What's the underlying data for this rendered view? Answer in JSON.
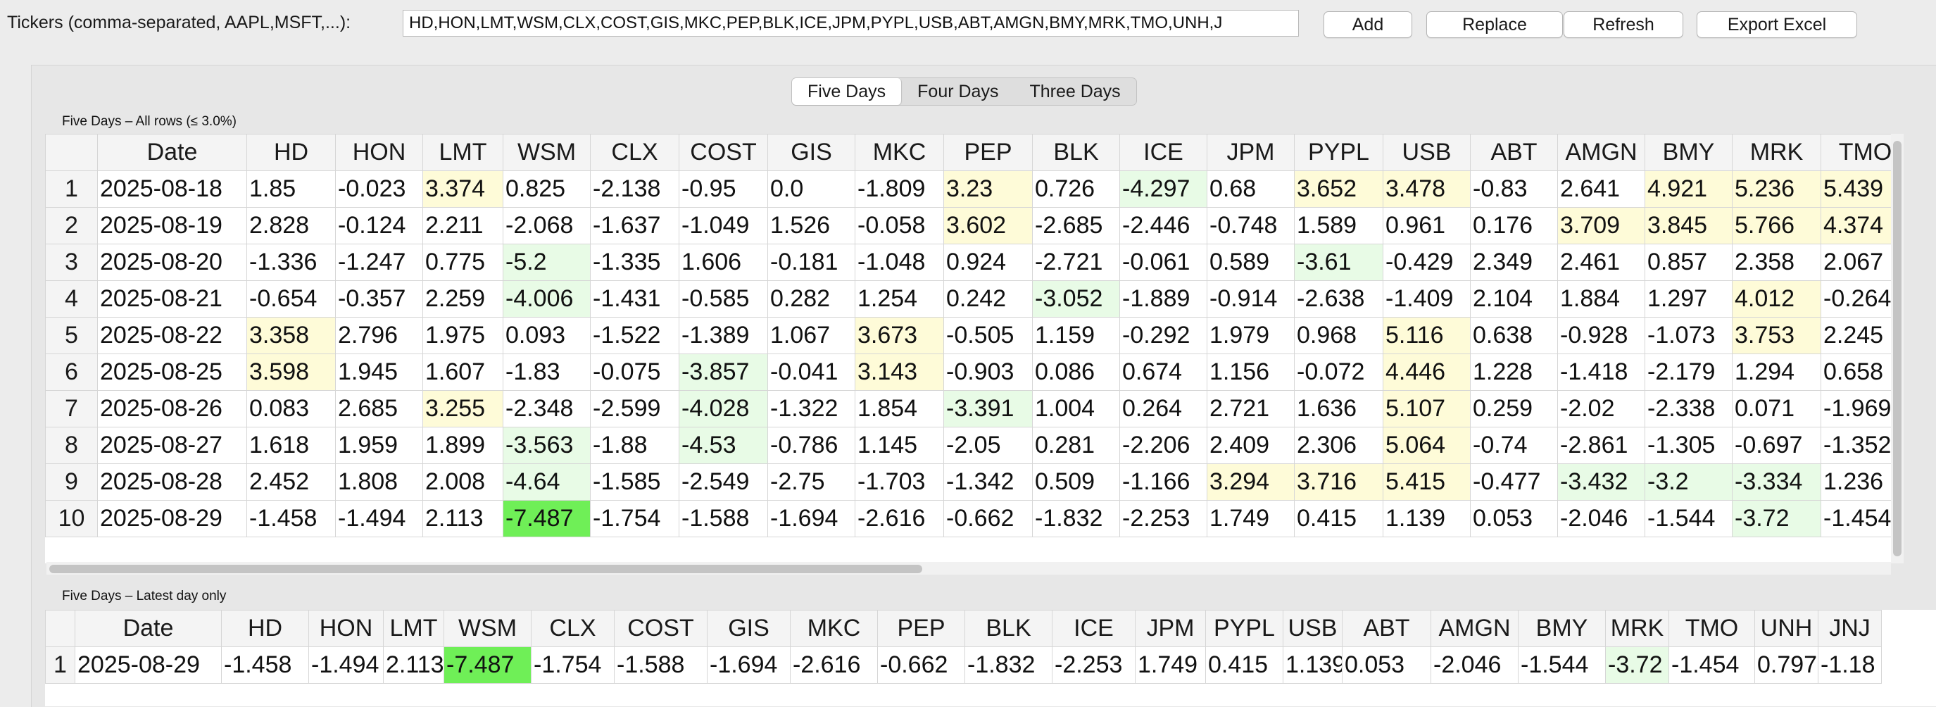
{
  "toolbar": {
    "tickers_label": "Tickers (comma-separated, AAPL,MSFT,...):",
    "tickers_value": "HD,HON,LMT,WSM,CLX,COST,GIS,MKC,PEP,BLK,ICE,JPM,PYPL,USB,ABT,AMGN,BMY,MRK,TMO,UNH,J",
    "add_label": "Add",
    "replace_label": "Replace",
    "refresh_label": "Refresh",
    "export_label": "Export Excel"
  },
  "tabs": [
    "Five Days",
    "Four Days",
    "Three Days"
  ],
  "active_tab": 0,
  "highlight_colors": {
    "yellow": "#fefbd8",
    "light_green": "#e8fbe6",
    "strong_green": "#6fef57"
  },
  "all_rows": {
    "caption": "Five Days – All rows (≤ 3.0%)",
    "columns": [
      "Date",
      "HD",
      "HON",
      "LMT",
      "WSM",
      "CLX",
      "COST",
      "GIS",
      "MKC",
      "PEP",
      "BLK",
      "ICE",
      "JPM",
      "PYPL",
      "USB",
      "ABT",
      "AMGN",
      "BMY",
      "MRK",
      "TMO"
    ],
    "rows": [
      {
        "idx": "1",
        "cells": [
          "2025-08-18",
          "1.85",
          "-0.023",
          "3.374",
          "0.825",
          "-2.138",
          "-0.95",
          "0.0",
          "-1.809",
          "3.23",
          "0.726",
          "-4.297",
          "0.68",
          "3.652",
          "3.478",
          "-0.83",
          "2.641",
          "4.921",
          "5.236",
          "5.439"
        ]
      },
      {
        "idx": "2",
        "cells": [
          "2025-08-19",
          "2.828",
          "-0.124",
          "2.211",
          "-2.068",
          "-1.637",
          "-1.049",
          "1.526",
          "-0.058",
          "3.602",
          "-2.685",
          "-2.446",
          "-0.748",
          "1.589",
          "0.961",
          "0.176",
          "3.709",
          "3.845",
          "5.766",
          "4.374"
        ]
      },
      {
        "idx": "3",
        "cells": [
          "2025-08-20",
          "-1.336",
          "-1.247",
          "0.775",
          "-5.2",
          "-1.335",
          "1.606",
          "-0.181",
          "-1.048",
          "0.924",
          "-2.721",
          "-0.061",
          "0.589",
          "-3.61",
          "-0.429",
          "2.349",
          "2.461",
          "0.857",
          "2.358",
          "2.067"
        ]
      },
      {
        "idx": "4",
        "cells": [
          "2025-08-21",
          "-0.654",
          "-0.357",
          "2.259",
          "-4.006",
          "-1.431",
          "-0.585",
          "0.282",
          "1.254",
          "0.242",
          "-3.052",
          "-1.889",
          "-0.914",
          "-2.638",
          "-1.409",
          "2.104",
          "1.884",
          "1.297",
          "4.012",
          "-0.264"
        ]
      },
      {
        "idx": "5",
        "cells": [
          "2025-08-22",
          "3.358",
          "2.796",
          "1.975",
          "0.093",
          "-1.522",
          "-1.389",
          "1.067",
          "3.673",
          "-0.505",
          "1.159",
          "-0.292",
          "1.979",
          "0.968",
          "5.116",
          "0.638",
          "-0.928",
          "-1.073",
          "3.753",
          "2.245"
        ]
      },
      {
        "idx": "6",
        "cells": [
          "2025-08-25",
          "3.598",
          "1.945",
          "1.607",
          "-1.83",
          "-0.075",
          "-3.857",
          "-0.041",
          "3.143",
          "-0.903",
          "0.086",
          "0.674",
          "1.156",
          "-0.072",
          "4.446",
          "1.228",
          "-1.418",
          "-2.179",
          "1.294",
          "0.658"
        ]
      },
      {
        "idx": "7",
        "cells": [
          "2025-08-26",
          "0.083",
          "2.685",
          "3.255",
          "-2.348",
          "-2.599",
          "-4.028",
          "-1.322",
          "1.854",
          "-3.391",
          "1.004",
          "0.264",
          "2.721",
          "1.636",
          "5.107",
          "0.259",
          "-2.02",
          "-2.338",
          "0.071",
          "-1.969"
        ]
      },
      {
        "idx": "8",
        "cells": [
          "2025-08-27",
          "1.618",
          "1.959",
          "1.899",
          "-3.563",
          "-1.88",
          "-4.53",
          "-0.786",
          "1.145",
          "-2.05",
          "0.281",
          "-2.206",
          "2.409",
          "2.306",
          "5.064",
          "-0.74",
          "-2.861",
          "-1.305",
          "-0.697",
          "-1.352"
        ]
      },
      {
        "idx": "9",
        "cells": [
          "2025-08-28",
          "2.452",
          "1.808",
          "2.008",
          "-4.64",
          "-1.585",
          "-2.549",
          "-2.75",
          "-1.703",
          "-1.342",
          "0.509",
          "-1.166",
          "3.294",
          "3.716",
          "5.415",
          "-0.477",
          "-3.432",
          "-3.2",
          "-3.334",
          "1.236"
        ]
      },
      {
        "idx": "10",
        "cells": [
          "2025-08-29",
          "-1.458",
          "-1.494",
          "2.113",
          "-7.487",
          "-1.754",
          "-1.588",
          "-1.694",
          "-2.616",
          "-0.662",
          "-1.832",
          "-2.253",
          "1.749",
          "0.415",
          "1.139",
          "0.053",
          "-2.046",
          "-1.544",
          "-3.72",
          "-1.454"
        ]
      }
    ]
  },
  "latest_day": {
    "caption": "Five Days – Latest day only",
    "columns": [
      "Date",
      "HD",
      "HON",
      "LMT",
      "WSM",
      "CLX",
      "COST",
      "GIS",
      "MKC",
      "PEP",
      "BLK",
      "ICE",
      "JPM",
      "PYPL",
      "USB",
      "ABT",
      "AMGN",
      "BMY",
      "MRK",
      "TMO",
      "UNH",
      "JNJ"
    ],
    "rows": [
      {
        "idx": "1",
        "cells": [
          "2025-08-29",
          "-1.458",
          "-1.494",
          "2.113",
          "-7.487",
          "-1.754",
          "-1.588",
          "-1.694",
          "-2.616",
          "-0.662",
          "-1.832",
          "-2.253",
          "1.749",
          "0.415",
          "1.139",
          "0.053",
          "-2.046",
          "-1.544",
          "-3.72",
          "-1.454",
          "0.797",
          "-1.18"
        ]
      }
    ]
  }
}
